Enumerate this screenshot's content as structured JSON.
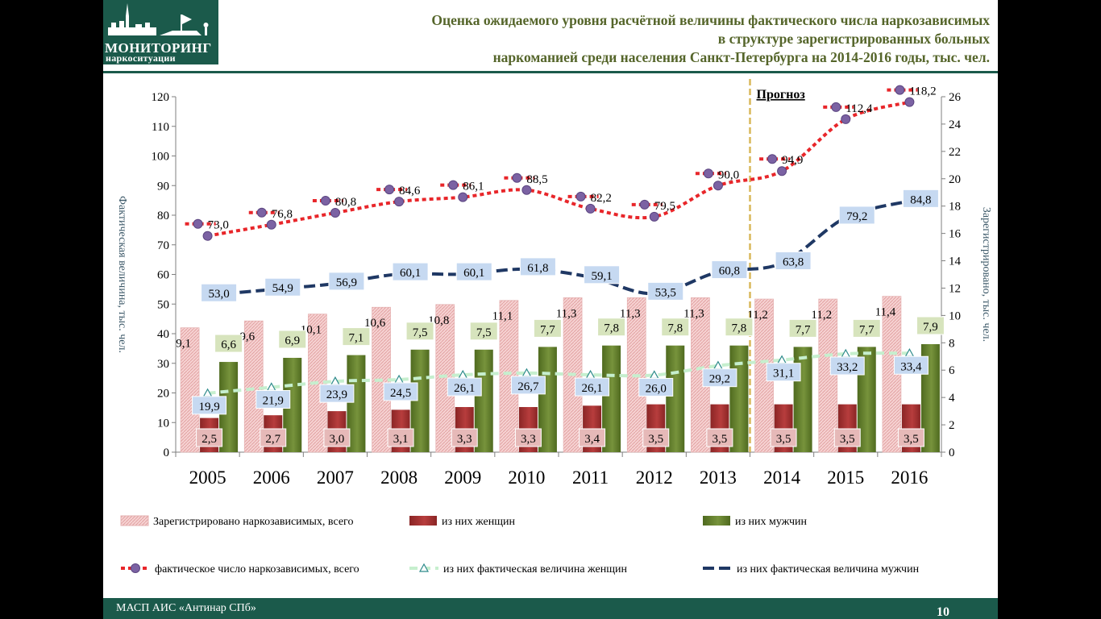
{
  "logo": {
    "title": "МОНИТОРИНГ",
    "subtitle": "наркоситуации"
  },
  "footer": {
    "text": "МАСП АИС «Антинар СПб»",
    "page": "10"
  },
  "colors": {
    "brand": "#1b5a4b",
    "title": "#55652a"
  },
  "chart_data": {
    "type": "bar",
    "title": [
      "Оценка ожидаемого уровня расчётной величины фактического числа наркозависимых",
      "в структуре зарегистрированных больных",
      "наркоманией среди населения Санкт-Петербурга на 2014-2016 годы, тыс. чел."
    ],
    "forecast_label": "Прогноз",
    "forecast_start": "2014",
    "y_left": {
      "label": "Фактическая величина, тыс. чел.",
      "min": 0,
      "max": 120,
      "ticks": [
        0,
        10,
        20,
        30,
        40,
        50,
        60,
        70,
        80,
        90,
        100,
        110,
        120
      ]
    },
    "y_right": {
      "label": "Зарегистрировано, тыс. чел.",
      "min": 0,
      "max": 26,
      "ticks": [
        0,
        2,
        4,
        6,
        8,
        10,
        12,
        14,
        16,
        18,
        20,
        22,
        24,
        26
      ]
    },
    "categories": [
      "2005",
      "2006",
      "2007",
      "2008",
      "2009",
      "2010",
      "2011",
      "2012",
      "2013",
      "2014",
      "2015",
      "2016"
    ],
    "bars": [
      {
        "name": "Зарегистрировано наркозависимых, всего",
        "axis": "right",
        "color": "#eaa6a6",
        "values": [
          9.1,
          9.6,
          10.1,
          10.6,
          10.8,
          11.1,
          11.3,
          11.3,
          11.3,
          11.2,
          11.2,
          11.4
        ],
        "labels": [
          "9,1",
          "9,6",
          "10,1",
          "10,6",
          "10,8",
          "11,1",
          "11,3",
          "11,3",
          "11,3",
          "11,2",
          "11,2",
          "11,4"
        ]
      },
      {
        "name": "из них женщин",
        "axis": "right",
        "color": "#b73d3d",
        "values": [
          2.5,
          2.7,
          3.0,
          3.1,
          3.3,
          3.3,
          3.4,
          3.5,
          3.5,
          3.5,
          3.5,
          3.5
        ],
        "labels": [
          "2,5",
          "2,7",
          "3,0",
          "3,1",
          "3,3",
          "3,3",
          "3,4",
          "3,5",
          "3,5",
          "3,5",
          "3,5",
          "3,5"
        ]
      },
      {
        "name": "из них мужчин",
        "axis": "right",
        "color": "#77933c",
        "values": [
          6.6,
          6.9,
          7.1,
          7.5,
          7.5,
          7.7,
          7.8,
          7.8,
          7.8,
          7.7,
          7.7,
          7.9
        ],
        "labels": [
          "6,6",
          "6,9",
          "7,1",
          "7,5",
          "7,5",
          "7,7",
          "7,8",
          "7,8",
          "7,8",
          "7,7",
          "7,7",
          "7,9"
        ]
      }
    ],
    "lines": [
      {
        "name": "фактическое число наркозависимых, всего",
        "axis": "left",
        "color": "#e8262a",
        "values": [
          73.0,
          76.8,
          80.8,
          84.6,
          86.1,
          88.5,
          82.2,
          79.5,
          90.0,
          94.9,
          112.4,
          118.2
        ],
        "labels": [
          "73,0",
          "76,8",
          "80,8",
          "84,6",
          "86,1",
          "88,5",
          "82,2",
          "79,5",
          "90,0",
          "94,9",
          "112,4",
          "118,2"
        ]
      },
      {
        "name": "из них фактическая величина женщин",
        "axis": "left",
        "color": "#c6efce",
        "values": [
          19.9,
          21.9,
          23.9,
          24.5,
          26.1,
          26.7,
          26.1,
          26.0,
          29.2,
          31.1,
          33.2,
          33.4
        ],
        "labels": [
          "19,9",
          "21,9",
          "23,9",
          "24,5",
          "26,1",
          "26,7",
          "26,1",
          "26,0",
          "29,2",
          "31,1",
          "33,2",
          "33,4"
        ]
      },
      {
        "name": "из них фактическая величина мужчин",
        "axis": "left",
        "color": "#1f3864",
        "values": [
          53.0,
          54.9,
          56.9,
          60.1,
          60.1,
          61.8,
          59.1,
          53.5,
          60.8,
          63.8,
          79.2,
          84.8
        ],
        "labels": [
          "53,0",
          "54,9",
          "56,9",
          "60,1",
          "60,1",
          "61,8",
          "59,1",
          "53,5",
          "60,8",
          "63,8",
          "79,2",
          "84,8"
        ]
      }
    ],
    "legend_position": "bottom",
    "grid": false
  }
}
